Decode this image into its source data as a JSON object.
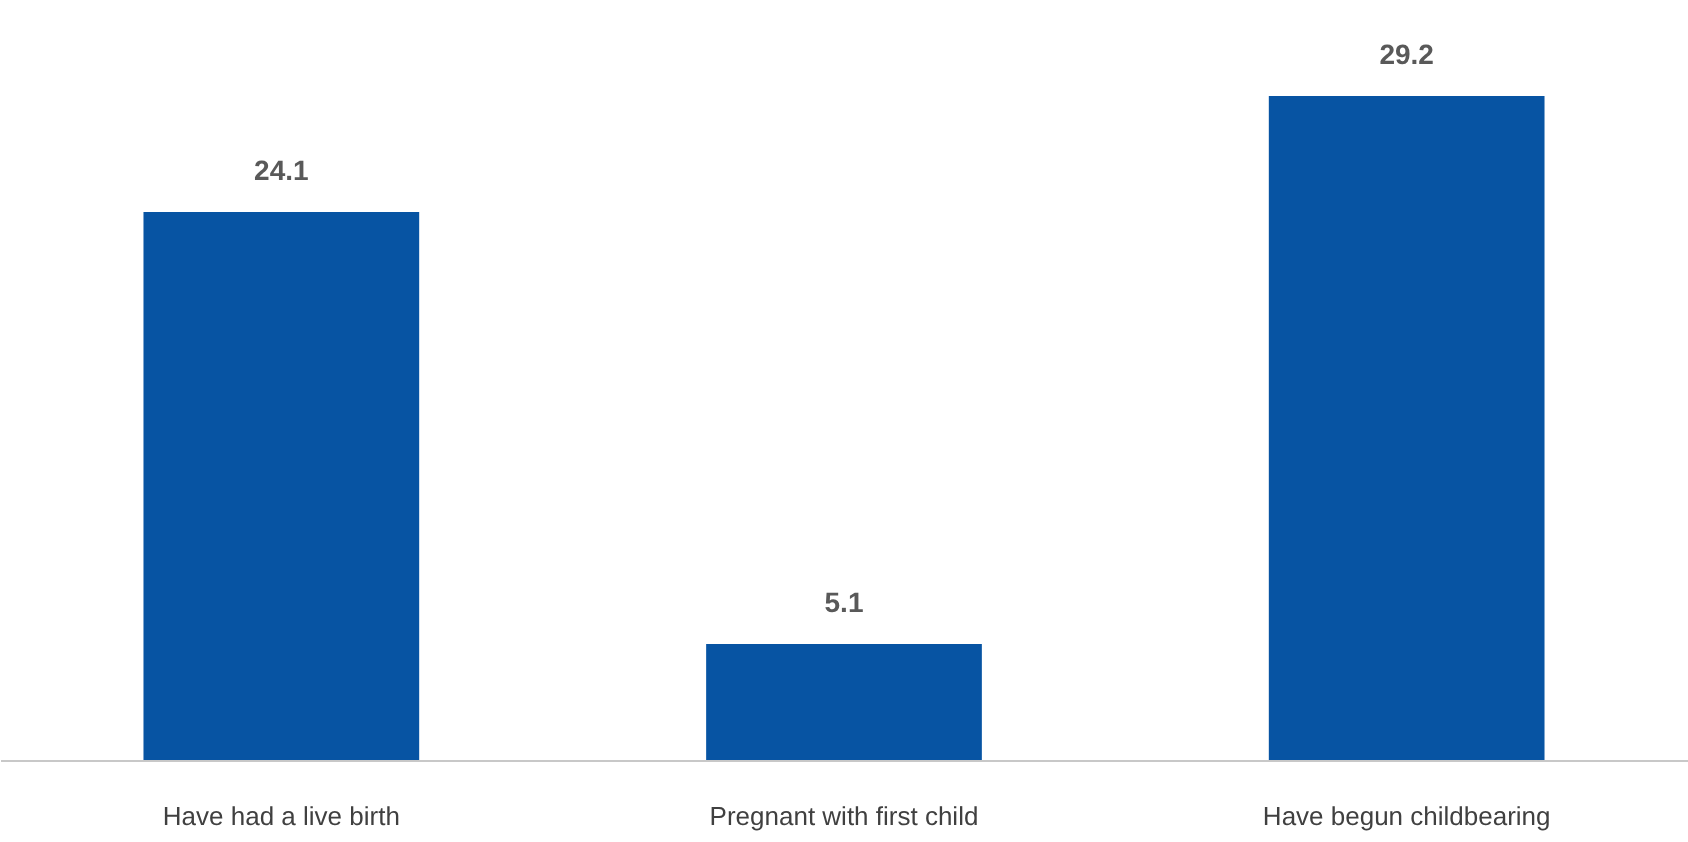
{
  "chart_data": {
    "type": "bar",
    "categories": [
      "Have had a live birth",
      "Pregnant with first child",
      "Have begun childbearing"
    ],
    "values": [
      24.1,
      5.1,
      29.2
    ],
    "color": "#0754a3",
    "data_labels": true
  }
}
